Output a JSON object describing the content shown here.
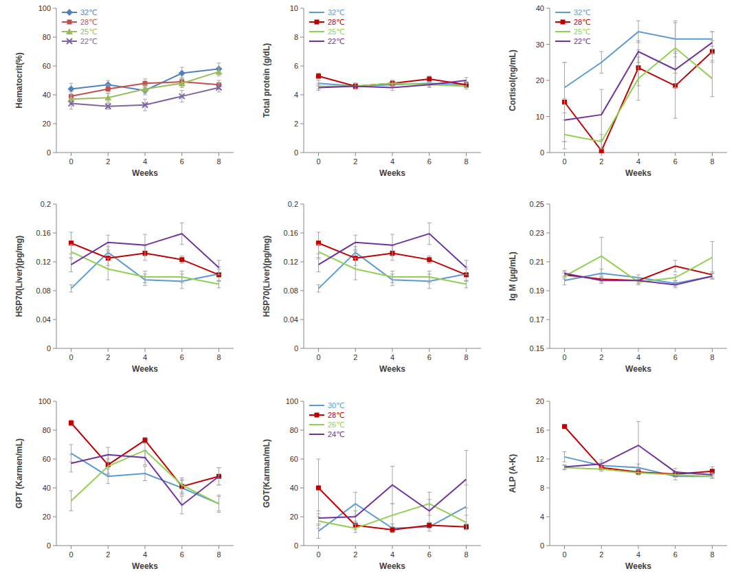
{
  "chart_data": [
    {
      "type": "line",
      "y_label": "Hematocrit(%)",
      "x_label": "Weeks",
      "x": [
        0,
        2,
        4,
        6,
        8
      ],
      "xlim": [
        -0.8,
        8.8
      ],
      "xticks": [
        0,
        2,
        4,
        6,
        8
      ],
      "ylim": [
        0,
        100
      ],
      "yticks": [
        0,
        20,
        40,
        60,
        80,
        100
      ],
      "grid": false,
      "legend": "top-left",
      "series": [
        {
          "name": "32℃",
          "color": "#4f81bd",
          "marker": "diamond",
          "values": [
            44,
            47,
            43,
            55,
            58
          ],
          "errors": [
            4,
            3,
            3,
            4,
            4
          ]
        },
        {
          "name": "28℃",
          "color": "#c0504d",
          "marker": "square",
          "values": [
            39,
            44,
            48,
            49,
            47
          ],
          "errors": [
            3,
            3,
            3,
            3,
            3
          ]
        },
        {
          "name": "25℃",
          "color": "#9bbb59",
          "marker": "triangle",
          "values": [
            37,
            38,
            44,
            48,
            56
          ],
          "errors": [
            3,
            3,
            3,
            3,
            3
          ]
        },
        {
          "name": "22℃",
          "color": "#8064a2",
          "marker": "x",
          "values": [
            34,
            32,
            33,
            39,
            45
          ],
          "errors": [
            4,
            2,
            4,
            4,
            3
          ]
        }
      ]
    },
    {
      "type": "line",
      "y_label": "Total protein (g/dL)",
      "x_label": "Weeks",
      "x": [
        0,
        2,
        4,
        6,
        8
      ],
      "xlim": [
        -0.8,
        8.8
      ],
      "xticks": [
        0,
        2,
        4,
        6,
        8
      ],
      "ylim": [
        0,
        10
      ],
      "yticks": [
        0,
        2,
        4,
        6,
        8,
        10
      ],
      "grid": false,
      "legend": "top-left",
      "series": [
        {
          "name": "32℃",
          "color": "#5b9bd5",
          "marker": "none",
          "values": [
            4.8,
            4.6,
            4.7,
            4.8,
            4.7
          ],
          "errors": [
            0.2,
            0.2,
            0.2,
            0.2,
            0.2
          ]
        },
        {
          "name": "28℃",
          "color": "#c00000",
          "marker": "square",
          "values": [
            5.3,
            4.6,
            4.8,
            5.1,
            4.7
          ],
          "errors": [
            0.2,
            0.2,
            0.2,
            0.2,
            0.2
          ]
        },
        {
          "name": "25℃",
          "color": "#92d050",
          "marker": "none",
          "values": [
            4.6,
            4.6,
            4.8,
            4.7,
            4.6
          ],
          "errors": [
            0.2,
            0.2,
            0.2,
            0.2,
            0.2
          ]
        },
        {
          "name": "22℃",
          "color": "#7030a0",
          "marker": "none",
          "values": [
            4.5,
            4.6,
            4.5,
            4.7,
            5.0
          ],
          "errors": [
            0.2,
            0.2,
            0.2,
            0.2,
            0.2
          ]
        }
      ]
    },
    {
      "type": "line",
      "y_label": "Cortisol(ng/mL)",
      "x_label": "Weeks",
      "x": [
        0,
        2,
        4,
        6,
        8
      ],
      "xlim": [
        -0.8,
        8.8
      ],
      "xticks": [
        0,
        2,
        4,
        6,
        8
      ],
      "ylim": [
        0,
        40
      ],
      "yticks": [
        0,
        10,
        20,
        30,
        40
      ],
      "grid": false,
      "legend": "top-left",
      "series": [
        {
          "name": "32℃",
          "color": "#5b9bd5",
          "marker": "none",
          "values": [
            18,
            25,
            33.5,
            31.5,
            31.5
          ],
          "errors": [
            7,
            3,
            3,
            5,
            2
          ]
        },
        {
          "name": "28℃",
          "color": "#c00000",
          "marker": "square",
          "values": [
            14,
            0.5,
            23.5,
            18.5,
            28
          ],
          "errors": [
            11,
            3,
            5,
            9,
            3
          ]
        },
        {
          "name": "25℃",
          "color": "#92d050",
          "marker": "none",
          "values": [
            5,
            3,
            20.5,
            29,
            20.5
          ],
          "errors": [
            4,
            2,
            6,
            7,
            5
          ]
        },
        {
          "name": "22℃",
          "color": "#7030a0",
          "marker": "none",
          "values": [
            9,
            10.5,
            28,
            23,
            30.5
          ],
          "errors": [
            6,
            7,
            3,
            5,
            3
          ]
        }
      ]
    },
    {
      "type": "line",
      "y_label": "HSP70(Liver)(pg/mg)",
      "x_label": "Weeks",
      "x": [
        0,
        2,
        4,
        6,
        8
      ],
      "xlim": [
        -0.8,
        8.8
      ],
      "xticks": [
        0,
        2,
        4,
        6,
        8
      ],
      "ylim": [
        0,
        0.2
      ],
      "yticks": [
        0,
        0.04,
        0.08,
        0.12,
        0.16,
        0.2
      ],
      "grid": false,
      "series": [
        {
          "color": "#5b9bd5",
          "marker": "none",
          "values": [
            0.083,
            0.133,
            0.095,
            0.093,
            0.103
          ],
          "errors": [
            0.005,
            0.008,
            0.008,
            0.01,
            0.01
          ]
        },
        {
          "color": "#c00000",
          "marker": "square",
          "values": [
            0.146,
            0.125,
            0.132,
            0.123,
            0.102
          ],
          "errors": [
            0.015,
            0.01,
            0.01,
            0.005,
            0.008
          ]
        },
        {
          "color": "#92d050",
          "marker": "none",
          "values": [
            0.134,
            0.11,
            0.099,
            0.099,
            0.089
          ],
          "errors": [
            0.01,
            0.015,
            0.008,
            0.008,
            0.005
          ]
        },
        {
          "color": "#7030a0",
          "marker": "none",
          "values": [
            0.116,
            0.147,
            0.143,
            0.159,
            0.112
          ],
          "errors": [
            0.01,
            0.01,
            0.015,
            0.015,
            0.01
          ]
        }
      ]
    },
    {
      "type": "line",
      "y_label": "HSP70(Liver)(pg/mg)",
      "x_label": "Weeks",
      "x": [
        0,
        2,
        4,
        6,
        8
      ],
      "xlim": [
        -0.8,
        8.8
      ],
      "xticks": [
        0,
        2,
        4,
        6,
        8
      ],
      "ylim": [
        0,
        0.2
      ],
      "yticks": [
        0,
        0.04,
        0.08,
        0.12,
        0.16,
        0.2
      ],
      "grid": false,
      "series": [
        {
          "color": "#5b9bd5",
          "marker": "none",
          "values": [
            0.083,
            0.133,
            0.095,
            0.093,
            0.103
          ],
          "errors": [
            0.005,
            0.008,
            0.008,
            0.01,
            0.01
          ]
        },
        {
          "color": "#c00000",
          "marker": "square",
          "values": [
            0.146,
            0.125,
            0.132,
            0.123,
            0.102
          ],
          "errors": [
            0.015,
            0.01,
            0.01,
            0.005,
            0.008
          ]
        },
        {
          "color": "#92d050",
          "marker": "none",
          "values": [
            0.134,
            0.11,
            0.099,
            0.099,
            0.089
          ],
          "errors": [
            0.01,
            0.015,
            0.008,
            0.008,
            0.005
          ]
        },
        {
          "color": "#7030a0",
          "marker": "none",
          "values": [
            0.116,
            0.147,
            0.143,
            0.159,
            0.112
          ],
          "errors": [
            0.01,
            0.01,
            0.015,
            0.015,
            0.01
          ]
        }
      ]
    },
    {
      "type": "line",
      "y_label": "Ig M (μg/mL)",
      "x_label": "Weeks",
      "x": [
        0,
        2,
        4,
        6,
        8
      ],
      "xlim": [
        -0.8,
        8.8
      ],
      "xticks": [
        0,
        2,
        4,
        6,
        8
      ],
      "ylim": [
        0.15,
        0.25
      ],
      "yticks": [
        0.15,
        0.17,
        0.19,
        0.21,
        0.23,
        0.25
      ],
      "grid": false,
      "series": [
        {
          "color": "#5b9bd5",
          "marker": "none",
          "values": [
            0.197,
            0.202,
            0.199,
            0.195,
            0.2
          ],
          "errors": [
            0.003,
            0.003,
            0.002,
            0.002,
            0.002
          ]
        },
        {
          "color": "#c00000",
          "marker": "none",
          "values": [
            0.201,
            0.198,
            0.197,
            0.207,
            0.201
          ],
          "errors": [
            0.002,
            0.002,
            0.002,
            0.004,
            0.002
          ]
        },
        {
          "color": "#92d050",
          "marker": "none",
          "values": [
            0.2,
            0.214,
            0.196,
            0.199,
            0.213
          ],
          "errors": [
            0.002,
            0.013,
            0.002,
            0.002,
            0.011
          ]
        },
        {
          "color": "#7030a0",
          "marker": "none",
          "values": [
            0.202,
            0.197,
            0.197,
            0.194,
            0.2
          ],
          "errors": [
            0.002,
            0.002,
            0.002,
            0.002,
            0.002
          ]
        }
      ]
    },
    {
      "type": "line",
      "y_label": "GPT (Karmen/mL)",
      "x_label": "Weeks",
      "x": [
        0,
        2,
        4,
        6,
        8
      ],
      "xlim": [
        -0.8,
        8.8
      ],
      "xticks": [
        0,
        2,
        4,
        6,
        8
      ],
      "ylim": [
        0,
        100
      ],
      "yticks": [
        0,
        20,
        40,
        60,
        80,
        100
      ],
      "grid": false,
      "series": [
        {
          "color": "#5b9bd5",
          "marker": "none",
          "values": [
            64,
            48,
            50,
            40,
            29
          ],
          "errors": [
            6,
            5,
            5,
            5,
            5
          ]
        },
        {
          "color": "#c00000",
          "marker": "square",
          "values": [
            85,
            56,
            73,
            41,
            48
          ],
          "errors": [
            2,
            7,
            2,
            5,
            6
          ]
        },
        {
          "color": "#92d050",
          "marker": "none",
          "values": [
            31,
            55,
            66,
            42,
            29
          ],
          "errors": [
            7,
            5,
            5,
            5,
            6
          ]
        },
        {
          "color": "#7030a0",
          "marker": "none",
          "values": [
            57,
            63,
            61,
            28,
            48
          ],
          "errors": [
            6,
            5,
            5,
            6,
            6
          ]
        }
      ]
    },
    {
      "type": "line",
      "y_label": "GOT(Karman/mL)",
      "x_label": "Weeks",
      "x": [
        0,
        2,
        4,
        6,
        8
      ],
      "xlim": [
        -0.8,
        8.8
      ],
      "xticks": [
        0,
        2,
        4,
        6,
        8
      ],
      "ylim": [
        0,
        100
      ],
      "yticks": [
        0,
        20,
        40,
        60,
        80,
        100
      ],
      "grid": false,
      "legend": "top-left",
      "series": [
        {
          "name": "30℃",
          "color": "#5b9bd5",
          "marker": "none",
          "values": [
            10,
            29,
            12,
            13,
            27
          ],
          "errors": [
            5,
            8,
            3,
            3,
            15
          ]
        },
        {
          "name": "28℃",
          "color": "#c00000",
          "marker": "square",
          "values": [
            40,
            14,
            11,
            14,
            13
          ],
          "errors": [
            20,
            3,
            2,
            2,
            2
          ]
        },
        {
          "name": "26℃",
          "color": "#92d050",
          "marker": "none",
          "values": [
            17,
            12,
            21,
            29,
            16
          ],
          "errors": [
            5,
            3,
            8,
            8,
            5
          ]
        },
        {
          "name": "24℃",
          "color": "#7030a0",
          "marker": "none",
          "values": [
            19,
            20,
            42,
            24,
            46
          ],
          "errors": [
            5,
            4,
            13,
            8,
            20
          ]
        }
      ]
    },
    {
      "type": "line",
      "y_label": "ALP (A-K)",
      "x_label": "Weeks",
      "x": [
        0,
        2,
        4,
        6,
        8
      ],
      "xlim": [
        -0.8,
        8.8
      ],
      "xticks": [
        0,
        2,
        4,
        6,
        8
      ],
      "ylim": [
        0,
        20
      ],
      "yticks": [
        0,
        4,
        8,
        12,
        16,
        20
      ],
      "grid": false,
      "series": [
        {
          "color": "#5b9bd5",
          "marker": "none",
          "values": [
            12.3,
            11.1,
            10.8,
            9.6,
            9.6
          ],
          "errors": [
            0.7,
            0.5,
            0.5,
            0.5,
            0.3
          ]
        },
        {
          "color": "#c00000",
          "marker": "square",
          "values": [
            16.5,
            10.8,
            10.2,
            9.9,
            10.3
          ],
          "errors": [
            0.2,
            0.3,
            0.3,
            0.3,
            0.6
          ]
        },
        {
          "color": "#92d050",
          "marker": "none",
          "values": [
            10.8,
            10.6,
            10.1,
            9.8,
            9.6
          ],
          "errors": [
            0.3,
            0.3,
            0.3,
            0.3,
            0.3
          ]
        },
        {
          "color": "#7030a0",
          "marker": "none",
          "values": [
            10.9,
            11.3,
            13.9,
            10.2,
            9.8
          ],
          "errors": [
            0.3,
            0.6,
            3.3,
            0.5,
            0.3
          ]
        }
      ]
    }
  ]
}
